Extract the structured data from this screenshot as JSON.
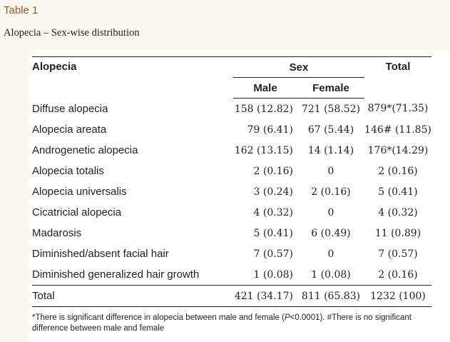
{
  "table_label": "Table 1",
  "caption": "Alopecia – Sex-wise distribution",
  "header": {
    "col_label": "Alopecia",
    "group_label": "Sex",
    "male": "Male",
    "female": "Female",
    "total": "Total"
  },
  "rows": [
    {
      "label": "Diffuse alopecia",
      "male": "158 (12.82)",
      "female": "721 (58.52)",
      "total": "879*(71.35)"
    },
    {
      "label": "Alopecia areata",
      "male": "79 (6.41)",
      "female": "67 (5.44)",
      "total": "146# (11.85)"
    },
    {
      "label": "Androgenetic alopecia",
      "male": "162 (13.15)",
      "female": "14 (1.14)",
      "total": "176*(14.29)"
    },
    {
      "label": "Alopecia totalis",
      "male": "2 (0.16)",
      "female": "0",
      "total": "2 (0.16)"
    },
    {
      "label": "Alopecia universalis",
      "male": "3 (0.24)",
      "female": "2 (0.16)",
      "total": "5 (0.41)"
    },
    {
      "label": "Cicatricial alopecia",
      "male": "4 (0.32)",
      "female": "0",
      "total": "4 (0.32)"
    },
    {
      "label": "Madarosis",
      "male": "5 (0.41)",
      "female": "6 (0.49)",
      "total": "11 (0.89)"
    },
    {
      "label": "Diminished/absent facial hair",
      "male": "7 (0.57)",
      "female": "0",
      "total": "7 (0.57)"
    },
    {
      "label": "Diminished generalized hair growth",
      "male": "1 (0.08)",
      "female": "1 (0.08)",
      "total": "2 (0.16)"
    }
  ],
  "total_row": {
    "label": "Total",
    "male": "421 (34.17)",
    "female": "811 (65.83)",
    "total": "1232 (100)"
  },
  "footnote": {
    "part1": "*There is significant difference in alopecia between male and female (",
    "p_symbol": "P",
    "part2": "<0.0001). ",
    "part3": "#There is no significant difference between male and female"
  }
}
